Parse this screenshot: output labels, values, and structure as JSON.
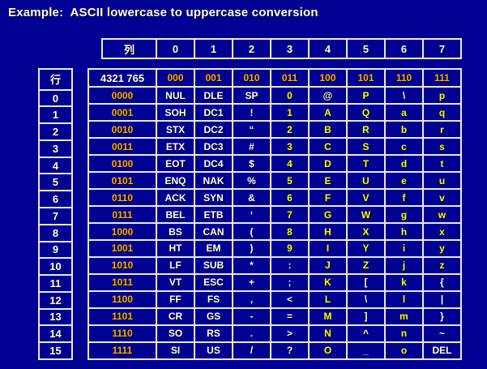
{
  "title": "Example:  ASCII lowercase to uppercase conversion",
  "colors": {
    "background": "#000092",
    "grid_lines": "#E8E8F4",
    "binary_gold": "#FFAC00",
    "char_yellow": "#FFFF00",
    "text_white": "#FFFFFF"
  },
  "column_header": {
    "label": "列",
    "values": [
      "0",
      "1",
      "2",
      "3",
      "4",
      "5",
      "6",
      "7"
    ]
  },
  "row_header": {
    "label": "行",
    "values": [
      "0",
      "1",
      "2",
      "3",
      "4",
      "5",
      "6",
      "7",
      "8",
      "9",
      "10",
      "11",
      "12",
      "13",
      "14",
      "15"
    ]
  },
  "ascii_table": {
    "bit_position_label": "4321 765",
    "column_bits": [
      "000",
      "001",
      "010",
      "011",
      "100",
      "101",
      "110",
      "111"
    ],
    "rows": [
      {
        "bits": "0000",
        "cells": [
          {
            "t": "NUL",
            "c": "w"
          },
          {
            "t": "DLE",
            "c": "w"
          },
          {
            "t": "SP",
            "c": "w"
          },
          {
            "t": "0",
            "c": "y"
          },
          {
            "t": "@",
            "c": "w"
          },
          {
            "t": "P",
            "c": "y"
          },
          {
            "t": "\\",
            "c": "w"
          },
          {
            "t": "p",
            "c": "y"
          }
        ]
      },
      {
        "bits": "0001",
        "cells": [
          {
            "t": "SOH",
            "c": "w"
          },
          {
            "t": "DC1",
            "c": "w"
          },
          {
            "t": "!",
            "c": "w"
          },
          {
            "t": "1",
            "c": "y"
          },
          {
            "t": "A",
            "c": "y"
          },
          {
            "t": "Q",
            "c": "y"
          },
          {
            "t": "a",
            "c": "y"
          },
          {
            "t": "q",
            "c": "y"
          }
        ]
      },
      {
        "bits": "0010",
        "cells": [
          {
            "t": "STX",
            "c": "w"
          },
          {
            "t": "DC2",
            "c": "w"
          },
          {
            "t": "“",
            "c": "w"
          },
          {
            "t": "2",
            "c": "y"
          },
          {
            "t": "B",
            "c": "y"
          },
          {
            "t": "R",
            "c": "y"
          },
          {
            "t": "b",
            "c": "y"
          },
          {
            "t": "r",
            "c": "y"
          }
        ]
      },
      {
        "bits": "0011",
        "cells": [
          {
            "t": "ETX",
            "c": "w"
          },
          {
            "t": "DC3",
            "c": "w"
          },
          {
            "t": "#",
            "c": "w"
          },
          {
            "t": "3",
            "c": "y"
          },
          {
            "t": "C",
            "c": "y"
          },
          {
            "t": "S",
            "c": "y"
          },
          {
            "t": "c",
            "c": "y"
          },
          {
            "t": "s",
            "c": "y"
          }
        ]
      },
      {
        "bits": "0100",
        "cells": [
          {
            "t": "EOT",
            "c": "w"
          },
          {
            "t": "DC4",
            "c": "w"
          },
          {
            "t": "$",
            "c": "w"
          },
          {
            "t": "4",
            "c": "y"
          },
          {
            "t": "D",
            "c": "y"
          },
          {
            "t": "T",
            "c": "y"
          },
          {
            "t": "d",
            "c": "y"
          },
          {
            "t": "t",
            "c": "y"
          }
        ]
      },
      {
        "bits": "0101",
        "cells": [
          {
            "t": "ENQ",
            "c": "w"
          },
          {
            "t": "NAK",
            "c": "w"
          },
          {
            "t": "%",
            "c": "w"
          },
          {
            "t": "5",
            "c": "y"
          },
          {
            "t": "E",
            "c": "y"
          },
          {
            "t": "U",
            "c": "y"
          },
          {
            "t": "e",
            "c": "y"
          },
          {
            "t": "u",
            "c": "y"
          }
        ]
      },
      {
        "bits": "0110",
        "cells": [
          {
            "t": "ACK",
            "c": "w"
          },
          {
            "t": "SYN",
            "c": "w"
          },
          {
            "t": "&",
            "c": "w"
          },
          {
            "t": "6",
            "c": "y"
          },
          {
            "t": "F",
            "c": "y"
          },
          {
            "t": "V",
            "c": "y"
          },
          {
            "t": "f",
            "c": "y"
          },
          {
            "t": "v",
            "c": "y"
          }
        ]
      },
      {
        "bits": "0111",
        "cells": [
          {
            "t": "BEL",
            "c": "w"
          },
          {
            "t": "ETB",
            "c": "w"
          },
          {
            "t": "‘",
            "c": "w"
          },
          {
            "t": "7",
            "c": "y"
          },
          {
            "t": "G",
            "c": "y"
          },
          {
            "t": "W",
            "c": "y"
          },
          {
            "t": "g",
            "c": "y"
          },
          {
            "t": "w",
            "c": "y"
          }
        ]
      },
      {
        "bits": "1000",
        "cells": [
          {
            "t": "BS",
            "c": "w"
          },
          {
            "t": "CAN",
            "c": "w"
          },
          {
            "t": "(",
            "c": "w"
          },
          {
            "t": "8",
            "c": "y"
          },
          {
            "t": "H",
            "c": "y"
          },
          {
            "t": "X",
            "c": "y"
          },
          {
            "t": "h",
            "c": "y"
          },
          {
            "t": "x",
            "c": "y"
          }
        ]
      },
      {
        "bits": "1001",
        "cells": [
          {
            "t": "HT",
            "c": "w"
          },
          {
            "t": "EM",
            "c": "w"
          },
          {
            "t": ")",
            "c": "w"
          },
          {
            "t": "9",
            "c": "y"
          },
          {
            "t": "I",
            "c": "y"
          },
          {
            "t": "Y",
            "c": "y"
          },
          {
            "t": "i",
            "c": "y"
          },
          {
            "t": "y",
            "c": "y"
          }
        ]
      },
      {
        "bits": "1010",
        "cells": [
          {
            "t": "LF",
            "c": "w"
          },
          {
            "t": "SUB",
            "c": "w"
          },
          {
            "t": "*",
            "c": "w"
          },
          {
            "t": ":",
            "c": "w"
          },
          {
            "t": "J",
            "c": "y"
          },
          {
            "t": "Z",
            "c": "y"
          },
          {
            "t": "j",
            "c": "y"
          },
          {
            "t": "z",
            "c": "y"
          }
        ]
      },
      {
        "bits": "1011",
        "cells": [
          {
            "t": "VT",
            "c": "w"
          },
          {
            "t": "ESC",
            "c": "w"
          },
          {
            "t": "+",
            "c": "w"
          },
          {
            "t": ";",
            "c": "w"
          },
          {
            "t": "K",
            "c": "y"
          },
          {
            "t": "[",
            "c": "w"
          },
          {
            "t": "k",
            "c": "y"
          },
          {
            "t": "{",
            "c": "w"
          }
        ]
      },
      {
        "bits": "1100",
        "cells": [
          {
            "t": "FF",
            "c": "w"
          },
          {
            "t": "FS",
            "c": "w"
          },
          {
            "t": ",",
            "c": "w"
          },
          {
            "t": "<",
            "c": "w"
          },
          {
            "t": "L",
            "c": "y"
          },
          {
            "t": "\\",
            "c": "w"
          },
          {
            "t": "l",
            "c": "y"
          },
          {
            "t": "|",
            "c": "w"
          }
        ]
      },
      {
        "bits": "1101",
        "cells": [
          {
            "t": "CR",
            "c": "w"
          },
          {
            "t": "GS",
            "c": "w"
          },
          {
            "t": "-",
            "c": "w"
          },
          {
            "t": "=",
            "c": "w"
          },
          {
            "t": "M",
            "c": "y"
          },
          {
            "t": "]",
            "c": "w"
          },
          {
            "t": "m",
            "c": "y"
          },
          {
            "t": "}",
            "c": "w"
          }
        ]
      },
      {
        "bits": "1110",
        "cells": [
          {
            "t": "SO",
            "c": "w"
          },
          {
            "t": "RS",
            "c": "w"
          },
          {
            "t": ".",
            "c": "w"
          },
          {
            "t": ">",
            "c": "w"
          },
          {
            "t": "N",
            "c": "y"
          },
          {
            "t": "^",
            "c": "w"
          },
          {
            "t": "n",
            "c": "y"
          },
          {
            "t": "~",
            "c": "w"
          }
        ]
      },
      {
        "bits": "1111",
        "cells": [
          {
            "t": "SI",
            "c": "w"
          },
          {
            "t": "US",
            "c": "w"
          },
          {
            "t": "/",
            "c": "w"
          },
          {
            "t": "?",
            "c": "w"
          },
          {
            "t": "O",
            "c": "y"
          },
          {
            "t": "_",
            "c": "w"
          },
          {
            "t": "o",
            "c": "y"
          },
          {
            "t": "DEL",
            "c": "w"
          }
        ]
      }
    ]
  }
}
